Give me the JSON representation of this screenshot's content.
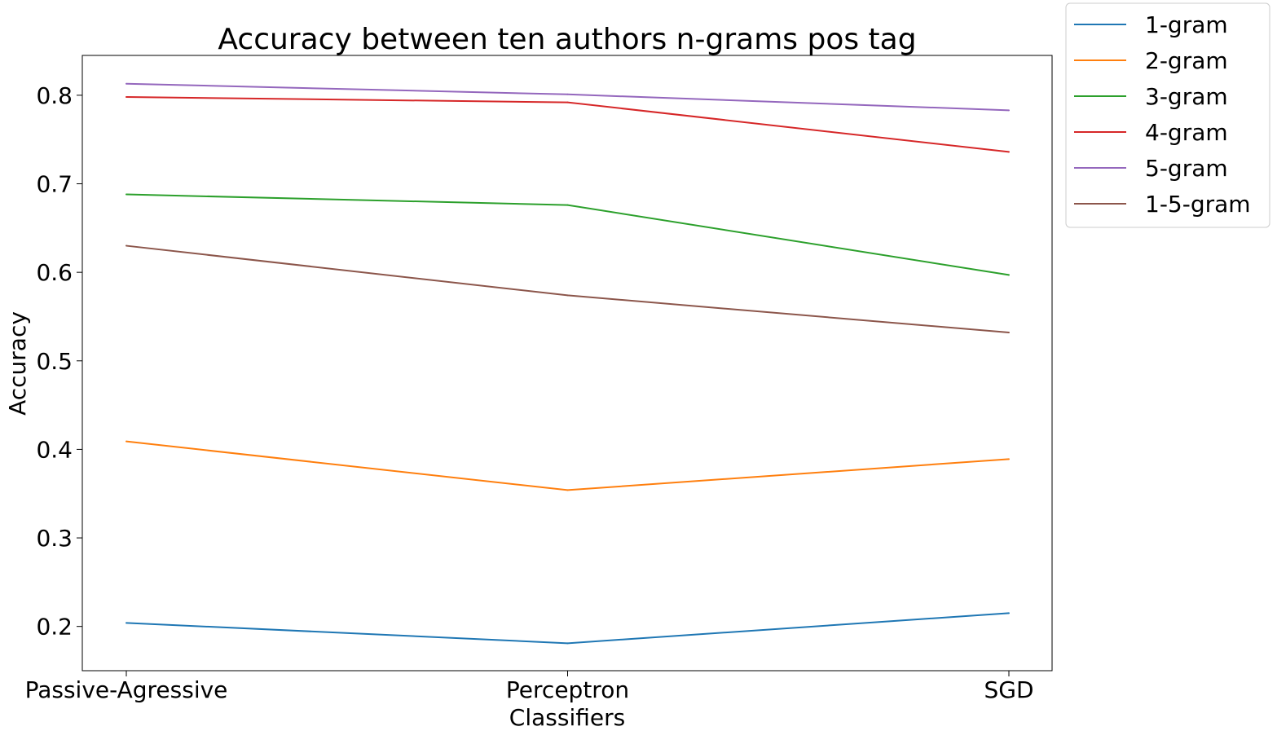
{
  "chart_data": {
    "type": "line",
    "title": "Accuracy between ten authors n-grams pos tag",
    "xlabel": "Classifiers",
    "ylabel": "Accuracy",
    "categories": [
      "Passive-Agressive",
      "Perceptron",
      "SGD"
    ],
    "ylim": [
      0.15,
      0.845
    ],
    "yticks": [
      "0.2",
      "0.3",
      "0.4",
      "0.5",
      "0.6",
      "0.7",
      "0.8"
    ],
    "grid": false,
    "legend_position": "outside-top-right",
    "series": [
      {
        "name": "1-gram",
        "color": "#1f77b4",
        "values": [
          0.204,
          0.181,
          0.215
        ]
      },
      {
        "name": "2-gram",
        "color": "#ff7f0e",
        "values": [
          0.409,
          0.354,
          0.389
        ]
      },
      {
        "name": "3-gram",
        "color": "#2ca02c",
        "values": [
          0.688,
          0.676,
          0.597
        ]
      },
      {
        "name": "4-gram",
        "color": "#d62728",
        "values": [
          0.798,
          0.792,
          0.736
        ]
      },
      {
        "name": "5-gram",
        "color": "#9467bd",
        "values": [
          0.813,
          0.801,
          0.783
        ]
      },
      {
        "name": "1-5-gram",
        "color": "#8c564b",
        "values": [
          0.63,
          0.574,
          0.532
        ]
      }
    ]
  }
}
